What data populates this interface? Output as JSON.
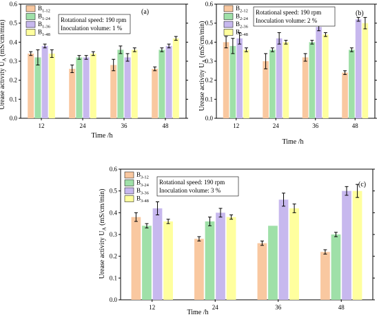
{
  "chart_data": [
    {
      "type": "bar",
      "panel": "(a)",
      "categories": [
        "12",
        "24",
        "36",
        "48"
      ],
      "xlabel": "Time /h",
      "ylabel_main": "Urease activity U",
      "ylabel_sub": "A",
      "ylabel_unit": " (mS/cm/min)",
      "ylim": [
        0,
        0.6
      ],
      "yticks": [
        "0.0",
        "0.1",
        "0.2",
        "0.3",
        "0.4",
        "0.5",
        "0.6"
      ],
      "annotation": [
        "Rotational speed: 190 rpm",
        "Inoculation volume: 1 %"
      ],
      "series": [
        {
          "name": "B",
          "sub": "1-12",
          "color": "#f9c8a0",
          "values": [
            0.34,
            0.26,
            0.28,
            0.26
          ],
          "errors": [
            0.01,
            0.02,
            0.03,
            0.01
          ]
        },
        {
          "name": "B",
          "sub": "1-24",
          "color": "#9fe0a8",
          "values": [
            0.32,
            0.32,
            0.36,
            0.36
          ],
          "errors": [
            0.04,
            0.01,
            0.02,
            0.01
          ]
        },
        {
          "name": "B",
          "sub": "1-36",
          "color": "#c7b8ee",
          "values": [
            0.38,
            0.32,
            0.32,
            0.38
          ],
          "errors": [
            0.01,
            0.01,
            0.02,
            0.01
          ]
        },
        {
          "name": "B",
          "sub": "1-48",
          "color": "#ffff9e",
          "values": [
            0.34,
            0.34,
            0.36,
            0.42
          ],
          "errors": [
            0.02,
            0.01,
            0.01,
            0.01
          ]
        }
      ]
    },
    {
      "type": "bar",
      "panel": "(b)",
      "categories": [
        "12",
        "24",
        "36",
        "48"
      ],
      "xlabel": "Time /h",
      "ylabel_main": "Urease activity U",
      "ylabel_sub": "A",
      "ylabel_unit": " (mS/cm/min)",
      "ylim": [
        0,
        0.6
      ],
      "yticks": [
        "0.0",
        "0.1",
        "0.2",
        "0.3",
        "0.4",
        "0.5",
        "0.6"
      ],
      "annotation": [
        "Rotational speed: 190 rpm",
        "Inoculation volume: 2 %"
      ],
      "series": [
        {
          "name": "B",
          "sub": "2-12",
          "color": "#f9c8a0",
          "values": [
            0.4,
            0.3,
            0.32,
            0.24
          ],
          "errors": [
            0.03,
            0.04,
            0.02,
            0.01
          ]
        },
        {
          "name": "B",
          "sub": "2-24",
          "color": "#9fe0a8",
          "values": [
            0.38,
            0.36,
            0.4,
            0.36
          ],
          "errors": [
            0.04,
            0.01,
            0.01,
            0.01
          ]
        },
        {
          "name": "B",
          "sub": "2-36",
          "color": "#c7b8ee",
          "values": [
            0.42,
            0.42,
            0.48,
            0.52
          ],
          "errors": [
            0.03,
            0.03,
            0.02,
            0.01
          ]
        },
        {
          "name": "B",
          "sub": "2-48",
          "color": "#ffff9e",
          "values": [
            0.36,
            0.4,
            0.44,
            0.5
          ],
          "errors": [
            0.01,
            0.01,
            0.01,
            0.03
          ]
        }
      ]
    },
    {
      "type": "bar",
      "panel": "(c)",
      "categories": [
        "12",
        "24",
        "36",
        "48"
      ],
      "xlabel": "Time /h",
      "ylabel_main": "Urease activity U",
      "ylabel_sub": "A",
      "ylabel_unit": " (mS/cm/min)",
      "ylim": [
        0,
        0.6
      ],
      "yticks": [
        "0.0",
        "0.1",
        "0.2",
        "0.3",
        "0.4",
        "0.5",
        "0.6"
      ],
      "annotation": [
        "Rotational speed: 190 rpm",
        "Inoculation volume: 3 %"
      ],
      "series": [
        {
          "name": "B",
          "sub": "3-12",
          "color": "#f9c8a0",
          "values": [
            0.38,
            0.28,
            0.26,
            0.22
          ],
          "errors": [
            0.02,
            0.01,
            0.01,
            0.01
          ]
        },
        {
          "name": "B",
          "sub": "3-24",
          "color": "#9fe0a8",
          "values": [
            0.34,
            0.36,
            0.34,
            0.3
          ],
          "errors": [
            0.01,
            0.02,
            0.0,
            0.01
          ]
        },
        {
          "name": "B",
          "sub": "3-36",
          "color": "#c7b8ee",
          "values": [
            0.42,
            0.4,
            0.46,
            0.5
          ],
          "errors": [
            0.03,
            0.02,
            0.03,
            0.02
          ]
        },
        {
          "name": "B",
          "sub": "3-48",
          "color": "#ffff9e",
          "values": [
            0.36,
            0.38,
            0.42,
            0.5
          ],
          "errors": [
            0.01,
            0.01,
            0.02,
            0.03
          ]
        }
      ]
    }
  ]
}
